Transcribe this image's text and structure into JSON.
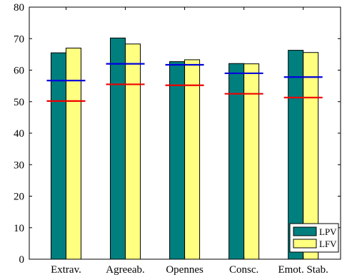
{
  "chart_data": {
    "type": "bar",
    "categories": [
      "Extrav.",
      "Agreeab.",
      "Opennes",
      "Consc.",
      "Emot. Stab."
    ],
    "series": [
      {
        "name": "LPV",
        "color": "#007f7f",
        "values": [
          65.5,
          70.2,
          62.7,
          62.1,
          66.3
        ]
      },
      {
        "name": "LFV",
        "color": "#ffff80",
        "values": [
          67.0,
          68.3,
          63.3,
          62.0,
          65.6
        ]
      }
    ],
    "reference_lines": [
      {
        "color": "#0000dd",
        "values": [
          56.7,
          62.0,
          61.7,
          59.0,
          57.8
        ]
      },
      {
        "color": "#ee0000",
        "values": [
          50.2,
          55.5,
          55.2,
          52.5,
          51.3
        ]
      }
    ],
    "ylim": [
      0,
      80
    ],
    "yticks": [
      "0",
      "10",
      "20",
      "30",
      "40",
      "50",
      "60",
      "70",
      "80"
    ],
    "title": "",
    "xlabel": "",
    "ylabel": "",
    "grid": false,
    "legend_position": "bottom-right"
  }
}
